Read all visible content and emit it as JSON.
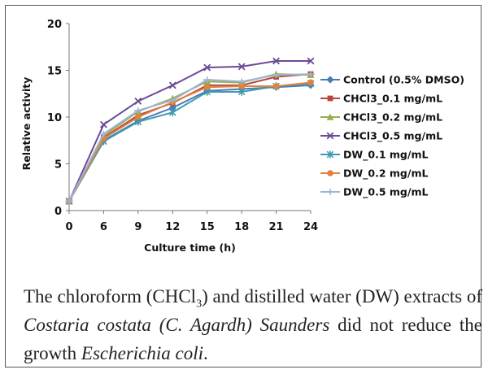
{
  "chart_data": {
    "type": "line",
    "title": "",
    "xlabel": "Culture time (h)",
    "ylabel": "Relative activity",
    "x": [
      0,
      6,
      9,
      12,
      15,
      18,
      21,
      24
    ],
    "ylim": [
      0,
      20
    ],
    "yticks": [
      0,
      5,
      10,
      15,
      20
    ],
    "grid": false,
    "legend_position": "right",
    "series": [
      {
        "name": "Control (0.5% DMSO)",
        "color": "#4a7bb7",
        "marker": "diamond",
        "values": [
          1.0,
          7.5,
          9.6,
          11.0,
          12.8,
          13.0,
          13.2,
          13.4
        ]
      },
      {
        "name": "CHCl3_0.1 mg/mL",
        "color": "#b5473f",
        "marker": "square",
        "values": [
          1.0,
          7.8,
          10.2,
          11.5,
          13.4,
          13.4,
          14.3,
          14.6
        ]
      },
      {
        "name": "CHCl3_0.2 mg/mL",
        "color": "#93b04a",
        "marker": "triangle",
        "values": [
          1.0,
          8.0,
          10.6,
          12.0,
          13.8,
          13.7,
          14.6,
          14.5
        ]
      },
      {
        "name": "CHCl3_0.5 mg/mL",
        "color": "#6b4a96",
        "marker": "x",
        "values": [
          1.0,
          9.2,
          11.7,
          13.4,
          15.3,
          15.4,
          16.0,
          16.0
        ]
      },
      {
        "name": "DW_0.1 mg/mL",
        "color": "#3f9ab0",
        "marker": "star",
        "values": [
          1.0,
          7.4,
          9.5,
          10.5,
          12.7,
          12.7,
          13.3,
          13.6
        ]
      },
      {
        "name": "DW_0.2 mg/mL",
        "color": "#e0823d",
        "marker": "circle",
        "values": [
          1.0,
          7.7,
          10.0,
          11.6,
          13.2,
          13.3,
          13.3,
          13.7
        ]
      },
      {
        "name": "DW_0.5 mg/mL",
        "color": "#9fb3d9",
        "marker": "plus",
        "values": [
          1.0,
          8.2,
          10.7,
          11.8,
          14.0,
          13.8,
          14.5,
          14.6
        ]
      }
    ]
  },
  "caption": {
    "part1": "The chloroform (CHCl",
    "sub": "3",
    "part2": ") and distilled water (DW) extracts of ",
    "species": "Costaria costata (C. Agardh) Saunders",
    "part3": " did not reduce the growth ",
    "organism": "Escherichia coli",
    "end": "."
  }
}
